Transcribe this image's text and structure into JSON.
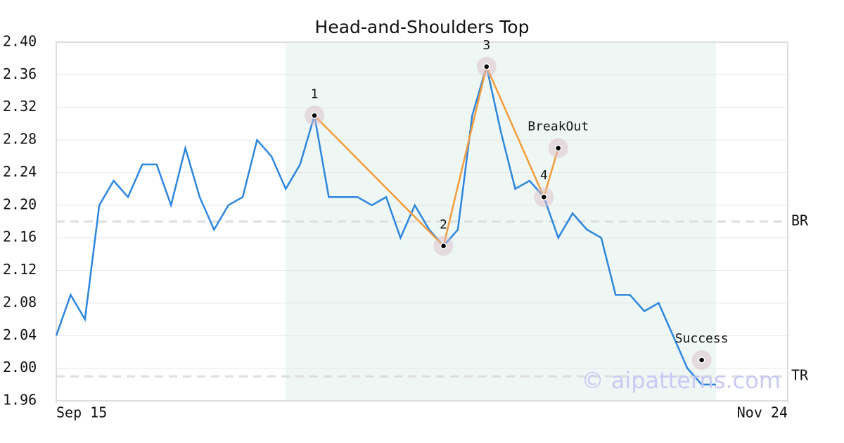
{
  "chart_data": {
    "type": "line",
    "title": "Head-and-Shoulders Top",
    "xlim": [
      0,
      51
    ],
    "xticks": [
      {
        "value": 0,
        "label": "Sep 15"
      },
      {
        "value": 51,
        "label": "Nov 24"
      }
    ],
    "ylim": [
      1.96,
      2.4
    ],
    "yticks": [
      1.96,
      {
        "value": 2.0,
        "label": "2.00"
      },
      2.04,
      2.08,
      2.12,
      2.16,
      {
        "value": 2.2,
        "label": "2.20"
      },
      2.24,
      2.28,
      2.32,
      2.36,
      {
        "value": 2.4,
        "label": "2.40"
      }
    ],
    "grid": true,
    "series": [
      {
        "color": "#2e86de",
        "values": [
          2.04,
          2.09,
          2.06,
          2.2,
          2.23,
          2.21,
          2.25,
          2.25,
          2.2,
          2.27,
          2.21,
          2.17,
          2.2,
          2.21,
          2.28,
          2.26,
          2.22,
          2.25,
          2.31,
          2.21,
          2.21,
          2.21,
          2.2,
          2.21,
          2.16,
          2.2,
          2.17,
          2.15,
          2.17,
          2.31,
          2.37,
          2.29,
          2.22,
          2.23,
          2.21,
          2.16,
          2.19,
          2.17,
          2.16,
          2.09,
          2.09,
          2.07,
          2.08,
          2.04,
          2.0,
          1.98,
          1.98
        ]
      }
    ],
    "shaded_range": [
      16,
      46
    ],
    "pattern_line": {
      "color": "#f39c3c",
      "points": [
        {
          "label": "1",
          "x": 18,
          "y": 2.31
        },
        {
          "label": "2",
          "x": 27,
          "y": 2.15
        },
        {
          "label": "3",
          "x": 30,
          "y": 2.37
        },
        {
          "label": "4",
          "x": 34,
          "y": 2.21
        },
        {
          "label": "BreakOut",
          "x": 35,
          "y": 2.27
        }
      ]
    },
    "target": {
      "label": "Success",
      "x": 45,
      "y": 2.01
    },
    "reference_lines": [
      {
        "label": "BR",
        "value": 2.18
      },
      {
        "label": "TR",
        "value": 1.99
      }
    ],
    "watermark": "© aipatterns.com"
  }
}
